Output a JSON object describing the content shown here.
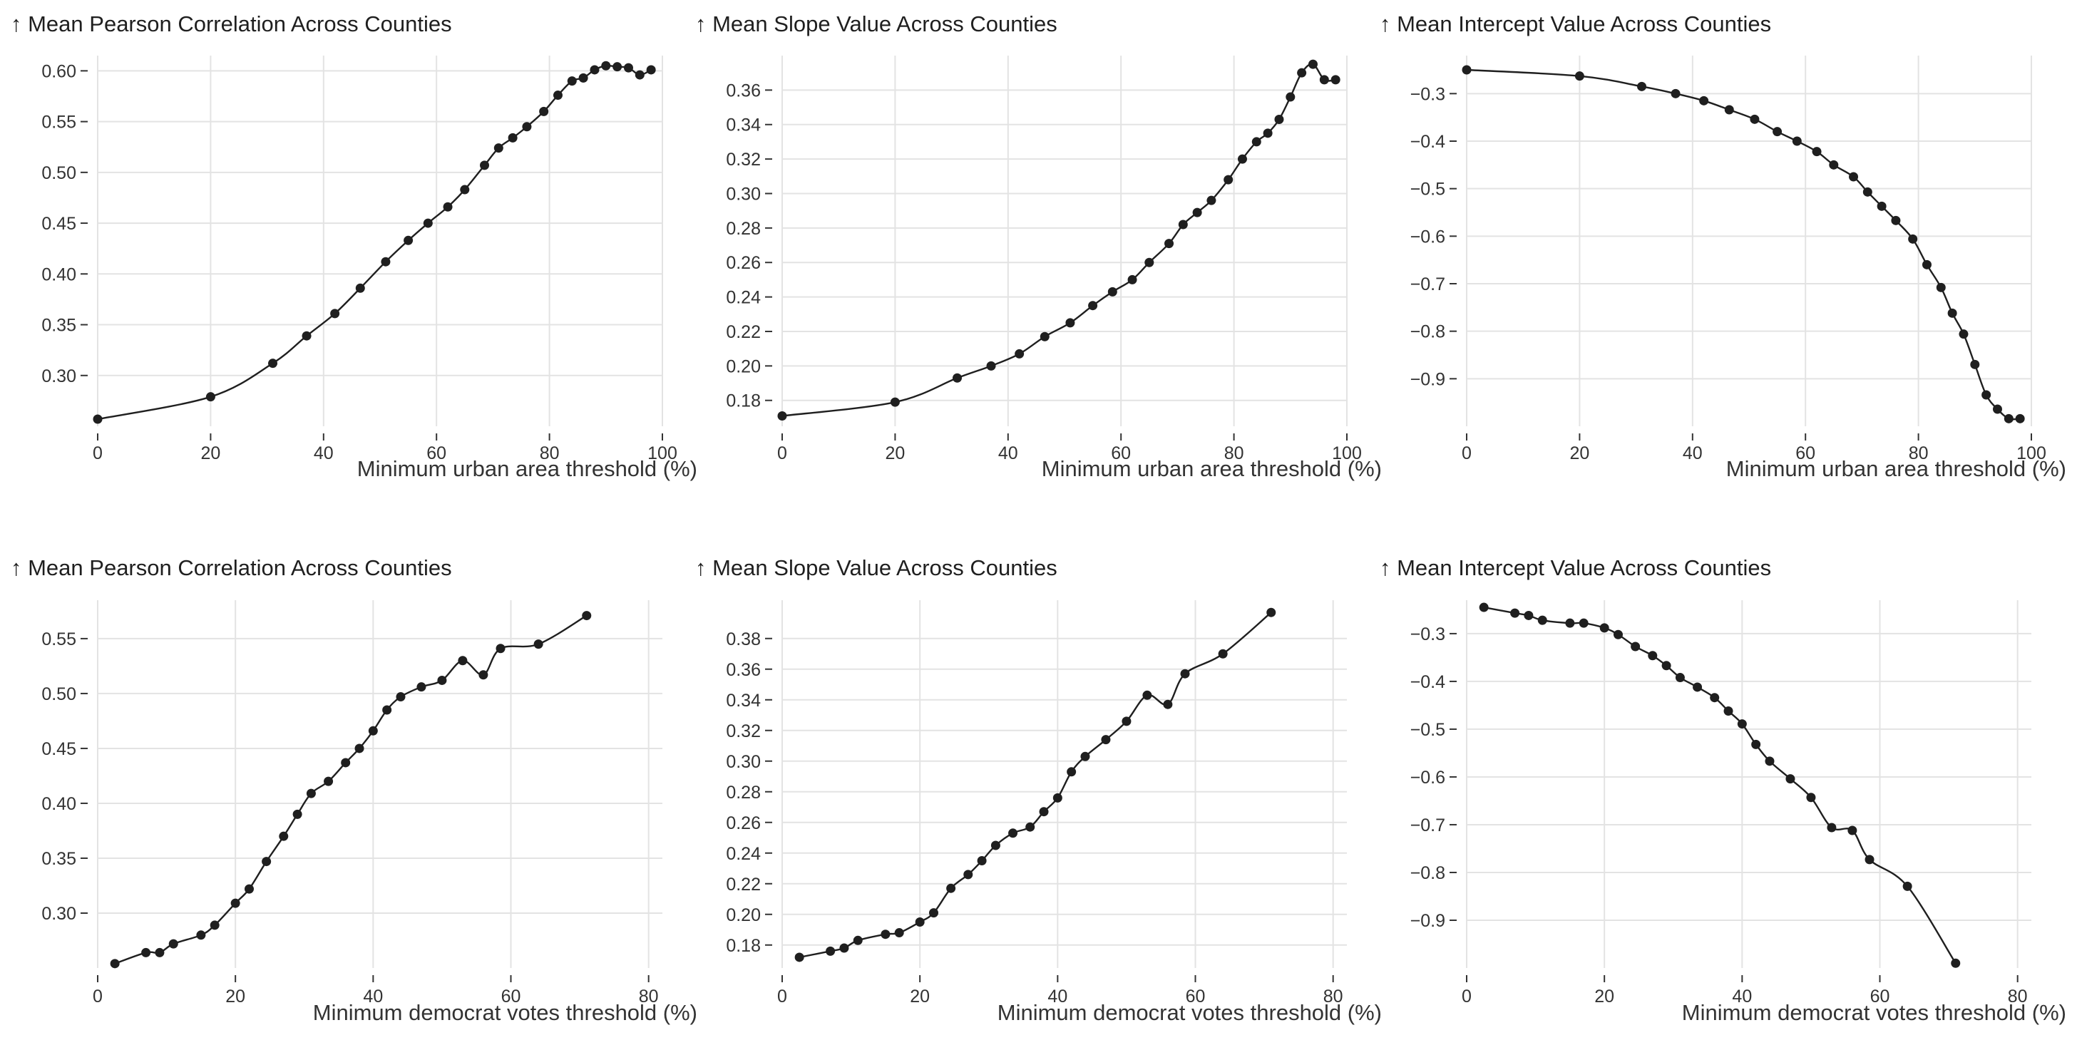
{
  "chart_data": [
    {
      "type": "line",
      "title": "↑ Mean Pearson Correlation Across Counties",
      "xlabel": "Minimum urban area threshold (%)",
      "xlim": [
        0,
        100
      ],
      "ylim": [
        0.25,
        0.615
      ],
      "grid": true,
      "x_ticks": [
        0,
        20,
        40,
        60,
        80,
        100
      ],
      "y_ticks": [
        0.3,
        0.35,
        0.4,
        0.45,
        0.5,
        0.55,
        0.6
      ],
      "series": [
        {
          "x": [
            0,
            20,
            31,
            37,
            42,
            46.5,
            51,
            55,
            58.5,
            62,
            65,
            68.5,
            71,
            73.5,
            76,
            79,
            81.5,
            84,
            86,
            88,
            90,
            92,
            94,
            96,
            98
          ],
          "y": [
            0.257,
            0.279,
            0.312,
            0.339,
            0.361,
            0.386,
            0.412,
            0.433,
            0.45,
            0.466,
            0.483,
            0.507,
            0.524,
            0.534,
            0.545,
            0.56,
            0.576,
            0.59,
            0.593,
            0.601,
            0.605,
            0.604,
            0.603,
            0.596,
            0.601
          ]
        }
      ]
    },
    {
      "type": "line",
      "title": "↑ Mean Slope Value Across Counties",
      "xlabel": "Minimum urban area threshold (%)",
      "xlim": [
        0,
        100
      ],
      "ylim": [
        0.165,
        0.38
      ],
      "grid": true,
      "x_ticks": [
        0,
        20,
        40,
        60,
        80,
        100
      ],
      "y_ticks": [
        0.18,
        0.2,
        0.22,
        0.24,
        0.26,
        0.28,
        0.3,
        0.32,
        0.34,
        0.36
      ],
      "series": [
        {
          "x": [
            0,
            20,
            31,
            37,
            42,
            46.5,
            51,
            55,
            58.5,
            62,
            65,
            68.5,
            71,
            73.5,
            76,
            79,
            81.5,
            84,
            86,
            88,
            90,
            92,
            94,
            96,
            98
          ],
          "y": [
            0.171,
            0.179,
            0.193,
            0.2,
            0.207,
            0.217,
            0.225,
            0.235,
            0.243,
            0.25,
            0.26,
            0.271,
            0.282,
            0.289,
            0.296,
            0.308,
            0.32,
            0.33,
            0.335,
            0.343,
            0.356,
            0.37,
            0.375,
            0.366,
            0.366
          ]
        }
      ]
    },
    {
      "type": "line",
      "title": "↑ Mean Intercept Value Across Counties",
      "xlabel": "Minimum urban area threshold (%)",
      "xlim": [
        0,
        100
      ],
      "ylim": [
        -1.0,
        -0.22
      ],
      "grid": true,
      "x_ticks": [
        0,
        20,
        40,
        60,
        80,
        100
      ],
      "y_ticks": [
        -0.3,
        -0.4,
        -0.5,
        -0.6,
        -0.7,
        -0.8,
        -0.9
      ],
      "series": [
        {
          "x": [
            0,
            20,
            31,
            37,
            42,
            46.5,
            51,
            55,
            58.5,
            62,
            65,
            68.5,
            71,
            73.5,
            76,
            79,
            81.5,
            84,
            86,
            88,
            90,
            92,
            94,
            96,
            98
          ],
          "y": [
            -0.25,
            -0.263,
            -0.285,
            -0.3,
            -0.315,
            -0.334,
            -0.354,
            -0.38,
            -0.4,
            -0.422,
            -0.45,
            -0.475,
            -0.507,
            -0.537,
            -0.567,
            -0.606,
            -0.66,
            -0.708,
            -0.762,
            -0.806,
            -0.87,
            -0.934,
            -0.964,
            -0.984,
            -0.984
          ]
        }
      ]
    },
    {
      "type": "line",
      "title": "↑ Mean Pearson Correlation Across Counties",
      "xlabel": "Minimum democrat votes threshold (%)",
      "xlim": [
        0,
        82
      ],
      "ylim": [
        0.25,
        0.585
      ],
      "grid": true,
      "x_ticks": [
        0,
        20,
        40,
        60,
        80
      ],
      "y_ticks": [
        0.3,
        0.35,
        0.4,
        0.45,
        0.5,
        0.55
      ],
      "series": [
        {
          "x": [
            2.5,
            7,
            9,
            11,
            15,
            17,
            20,
            22,
            24.5,
            27,
            29,
            31,
            33.5,
            36,
            38,
            40,
            42,
            44,
            47,
            50,
            53,
            56,
            58.5,
            64,
            71
          ],
          "y": [
            0.254,
            0.264,
            0.264,
            0.272,
            0.28,
            0.289,
            0.309,
            0.322,
            0.347,
            0.37,
            0.39,
            0.409,
            0.42,
            0.437,
            0.45,
            0.466,
            0.485,
            0.497,
            0.506,
            0.512,
            0.53,
            0.517,
            0.541,
            0.545,
            0.571
          ]
        }
      ]
    },
    {
      "type": "line",
      "title": "↑ Mean Slope Value Across Counties",
      "xlabel": "Minimum democrat votes threshold (%)",
      "xlim": [
        0,
        82
      ],
      "ylim": [
        0.165,
        0.405
      ],
      "grid": true,
      "x_ticks": [
        0,
        20,
        40,
        60,
        80
      ],
      "y_ticks": [
        0.18,
        0.2,
        0.22,
        0.24,
        0.26,
        0.28,
        0.3,
        0.32,
        0.34,
        0.36,
        0.38
      ],
      "series": [
        {
          "x": [
            2.5,
            7,
            9,
            11,
            15,
            17,
            20,
            22,
            24.5,
            27,
            29,
            31,
            33.5,
            36,
            38,
            40,
            42,
            44,
            47,
            50,
            53,
            56,
            58.5,
            64,
            71
          ],
          "y": [
            0.172,
            0.176,
            0.178,
            0.183,
            0.187,
            0.188,
            0.195,
            0.201,
            0.217,
            0.226,
            0.235,
            0.245,
            0.253,
            0.257,
            0.267,
            0.276,
            0.293,
            0.303,
            0.314,
            0.326,
            0.343,
            0.337,
            0.357,
            0.37,
            0.397
          ]
        }
      ]
    },
    {
      "type": "line",
      "title": "↑ Mean Intercept Value Across Counties",
      "xlabel": "Minimum democrat votes threshold (%)",
      "xlim": [
        0,
        82
      ],
      "ylim": [
        -1.0,
        -0.23
      ],
      "grid": true,
      "x_ticks": [
        0,
        20,
        40,
        60,
        80
      ],
      "y_ticks": [
        -0.3,
        -0.4,
        -0.5,
        -0.6,
        -0.7,
        -0.8,
        -0.9
      ],
      "series": [
        {
          "x": [
            2.5,
            7,
            9,
            11,
            15,
            17,
            20,
            22,
            24.5,
            27,
            29,
            31,
            33.5,
            36,
            38,
            40,
            42,
            44,
            47,
            50,
            53,
            56,
            58.5,
            64,
            71
          ],
          "y": [
            -0.245,
            -0.257,
            -0.262,
            -0.272,
            -0.278,
            -0.278,
            -0.288,
            -0.302,
            -0.327,
            -0.346,
            -0.367,
            -0.392,
            -0.412,
            -0.434,
            -0.462,
            -0.489,
            -0.532,
            -0.567,
            -0.604,
            -0.643,
            -0.706,
            -0.712,
            -0.773,
            -0.829,
            -0.99
          ]
        }
      ]
    }
  ]
}
